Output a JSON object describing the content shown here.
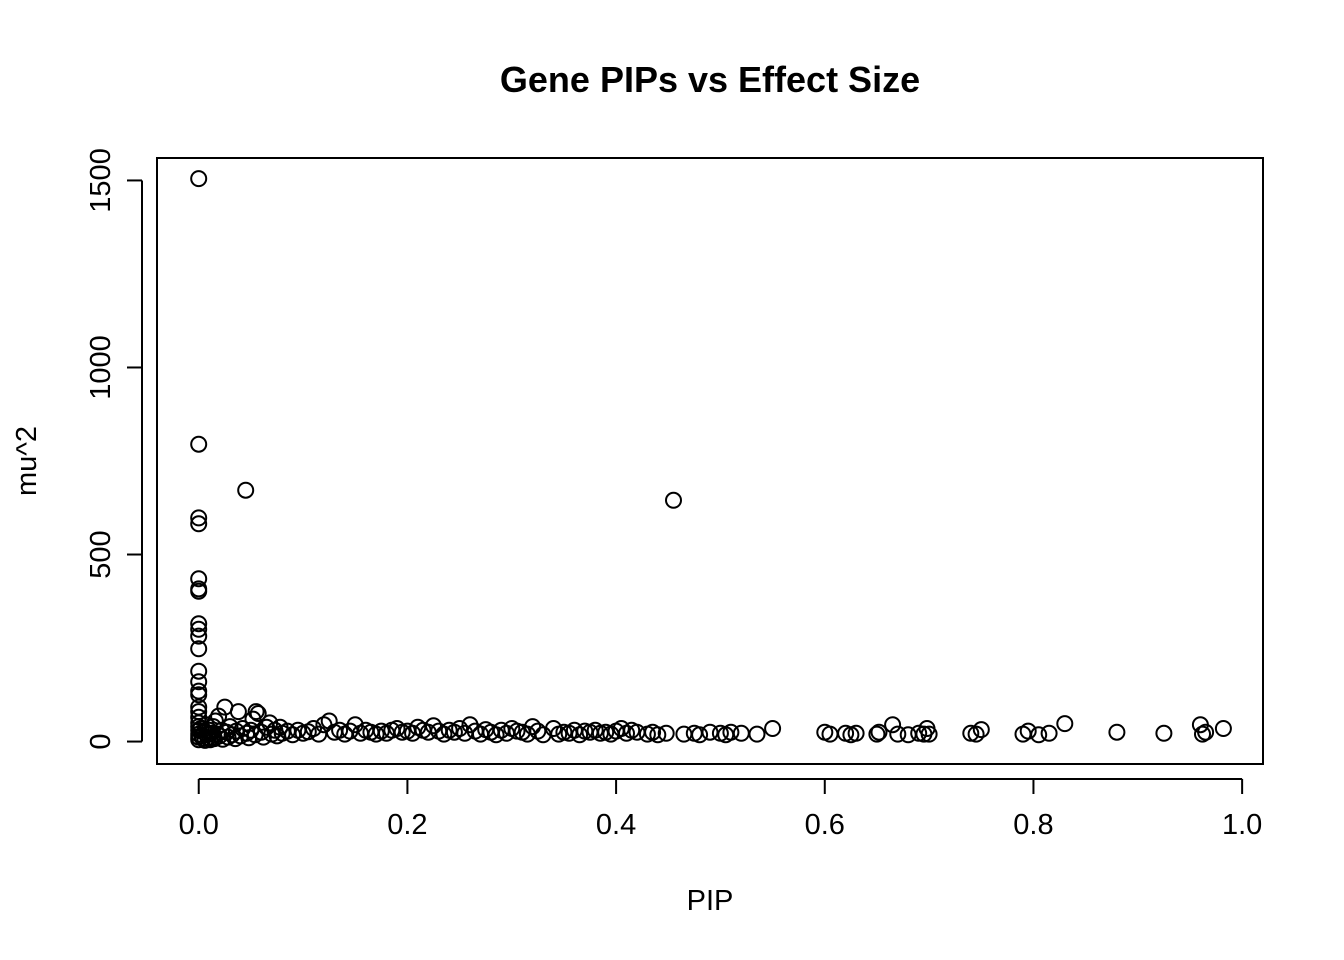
{
  "chart_data": {
    "type": "scatter",
    "title": "Gene PIPs vs Effect Size",
    "xlabel": "PIP",
    "ylabel": "mu^2",
    "xlim": [
      -0.04,
      1.02
    ],
    "ylim": [
      -60,
      1560
    ],
    "xticks": [
      0.0,
      0.2,
      0.4,
      0.6,
      0.8,
      1.0
    ],
    "xtick_labels": [
      "0.0",
      "0.2",
      "0.4",
      "0.6",
      "0.8",
      "1.0"
    ],
    "yticks": [
      0,
      500,
      1000,
      1500
    ],
    "ytick_labels": [
      "0",
      "500",
      "1000",
      "1500"
    ],
    "grid": false,
    "legend": "none",
    "marker": "open-circle",
    "points": [
      [
        0.0,
        1505
      ],
      [
        0.0,
        795
      ],
      [
        0.0,
        598
      ],
      [
        0.0,
        582
      ],
      [
        0.0,
        435
      ],
      [
        0.0,
        408
      ],
      [
        0.0,
        402
      ],
      [
        0.0,
        315
      ],
      [
        0.0,
        300
      ],
      [
        0.0,
        282
      ],
      [
        0.0,
        248
      ],
      [
        0.0,
        188
      ],
      [
        0.0,
        160
      ],
      [
        0.0,
        135
      ],
      [
        0.0,
        125
      ],
      [
        0.0,
        92
      ],
      [
        0.0,
        80
      ],
      [
        0.0,
        65
      ],
      [
        0.0,
        50
      ],
      [
        0.0,
        40
      ],
      [
        0.0,
        30
      ],
      [
        0.0,
        20
      ],
      [
        0.0,
        12
      ],
      [
        0.0,
        5
      ],
      [
        0.002,
        35
      ],
      [
        0.003,
        15
      ],
      [
        0.004,
        8
      ],
      [
        0.005,
        25
      ],
      [
        0.006,
        3
      ],
      [
        0.007,
        45
      ],
      [
        0.008,
        18
      ],
      [
        0.009,
        10
      ],
      [
        0.01,
        30
      ],
      [
        0.011,
        5
      ],
      [
        0.012,
        22
      ],
      [
        0.013,
        12
      ],
      [
        0.014,
        40
      ],
      [
        0.015,
        8
      ],
      [
        0.016,
        55
      ],
      [
        0.018,
        20
      ],
      [
        0.019,
        68
      ],
      [
        0.02,
        15
      ],
      [
        0.022,
        30
      ],
      [
        0.023,
        6
      ],
      [
        0.025,
        92
      ],
      [
        0.027,
        25
      ],
      [
        0.028,
        12
      ],
      [
        0.03,
        40
      ],
      [
        0.032,
        18
      ],
      [
        0.035,
        8
      ],
      [
        0.036,
        28
      ],
      [
        0.038,
        80
      ],
      [
        0.04,
        15
      ],
      [
        0.042,
        35
      ],
      [
        0.045,
        672
      ],
      [
        0.046,
        22
      ],
      [
        0.048,
        10
      ],
      [
        0.05,
        30
      ],
      [
        0.052,
        60
      ],
      [
        0.054,
        18
      ],
      [
        0.055,
        80
      ],
      [
        0.057,
        75
      ],
      [
        0.06,
        25
      ],
      [
        0.062,
        12
      ],
      [
        0.065,
        38
      ],
      [
        0.068,
        50
      ],
      [
        0.07,
        20
      ],
      [
        0.073,
        30
      ],
      [
        0.075,
        15
      ],
      [
        0.078,
        38
      ],
      [
        0.08,
        22
      ],
      [
        0.085,
        28
      ],
      [
        0.09,
        18
      ],
      [
        0.095,
        30
      ],
      [
        0.1,
        22
      ],
      [
        0.105,
        26
      ],
      [
        0.11,
        35
      ],
      [
        0.115,
        20
      ],
      [
        0.12,
        45
      ],
      [
        0.125,
        55
      ],
      [
        0.13,
        25
      ],
      [
        0.135,
        30
      ],
      [
        0.14,
        20
      ],
      [
        0.145,
        28
      ],
      [
        0.15,
        45
      ],
      [
        0.155,
        22
      ],
      [
        0.16,
        30
      ],
      [
        0.165,
        25
      ],
      [
        0.17,
        20
      ],
      [
        0.175,
        28
      ],
      [
        0.18,
        22
      ],
      [
        0.185,
        30
      ],
      [
        0.19,
        35
      ],
      [
        0.195,
        25
      ],
      [
        0.2,
        28
      ],
      [
        0.205,
        22
      ],
      [
        0.21,
        38
      ],
      [
        0.215,
        30
      ],
      [
        0.22,
        25
      ],
      [
        0.225,
        42
      ],
      [
        0.23,
        28
      ],
      [
        0.235,
        20
      ],
      [
        0.24,
        30
      ],
      [
        0.245,
        25
      ],
      [
        0.25,
        35
      ],
      [
        0.255,
        22
      ],
      [
        0.26,
        45
      ],
      [
        0.265,
        28
      ],
      [
        0.27,
        20
      ],
      [
        0.275,
        32
      ],
      [
        0.28,
        25
      ],
      [
        0.285,
        18
      ],
      [
        0.29,
        30
      ],
      [
        0.295,
        22
      ],
      [
        0.3,
        35
      ],
      [
        0.305,
        28
      ],
      [
        0.31,
        25
      ],
      [
        0.315,
        20
      ],
      [
        0.32,
        40
      ],
      [
        0.325,
        28
      ],
      [
        0.33,
        18
      ],
      [
        0.34,
        35
      ],
      [
        0.345,
        20
      ],
      [
        0.35,
        25
      ],
      [
        0.355,
        22
      ],
      [
        0.36,
        30
      ],
      [
        0.365,
        18
      ],
      [
        0.37,
        28
      ],
      [
        0.375,
        25
      ],
      [
        0.38,
        30
      ],
      [
        0.385,
        22
      ],
      [
        0.39,
        25
      ],
      [
        0.395,
        20
      ],
      [
        0.4,
        28
      ],
      [
        0.405,
        35
      ],
      [
        0.41,
        22
      ],
      [
        0.415,
        30
      ],
      [
        0.42,
        25
      ],
      [
        0.43,
        20
      ],
      [
        0.435,
        25
      ],
      [
        0.44,
        18
      ],
      [
        0.448,
        22
      ],
      [
        0.455,
        645
      ],
      [
        0.465,
        20
      ],
      [
        0.475,
        22
      ],
      [
        0.48,
        18
      ],
      [
        0.49,
        25
      ],
      [
        0.5,
        22
      ],
      [
        0.505,
        18
      ],
      [
        0.51,
        25
      ],
      [
        0.52,
        22
      ],
      [
        0.535,
        20
      ],
      [
        0.55,
        35
      ],
      [
        0.6,
        25
      ],
      [
        0.605,
        20
      ],
      [
        0.62,
        22
      ],
      [
        0.625,
        18
      ],
      [
        0.63,
        22
      ],
      [
        0.65,
        20
      ],
      [
        0.652,
        25
      ],
      [
        0.665,
        45
      ],
      [
        0.67,
        20
      ],
      [
        0.68,
        18
      ],
      [
        0.69,
        22
      ],
      [
        0.695,
        20
      ],
      [
        0.698,
        35
      ],
      [
        0.7,
        20
      ],
      [
        0.74,
        22
      ],
      [
        0.745,
        20
      ],
      [
        0.75,
        32
      ],
      [
        0.79,
        20
      ],
      [
        0.795,
        28
      ],
      [
        0.805,
        18
      ],
      [
        0.815,
        22
      ],
      [
        0.83,
        48
      ],
      [
        0.88,
        25
      ],
      [
        0.925,
        22
      ],
      [
        0.96,
        45
      ],
      [
        0.962,
        20
      ],
      [
        0.965,
        25
      ],
      [
        0.982,
        35
      ]
    ]
  }
}
